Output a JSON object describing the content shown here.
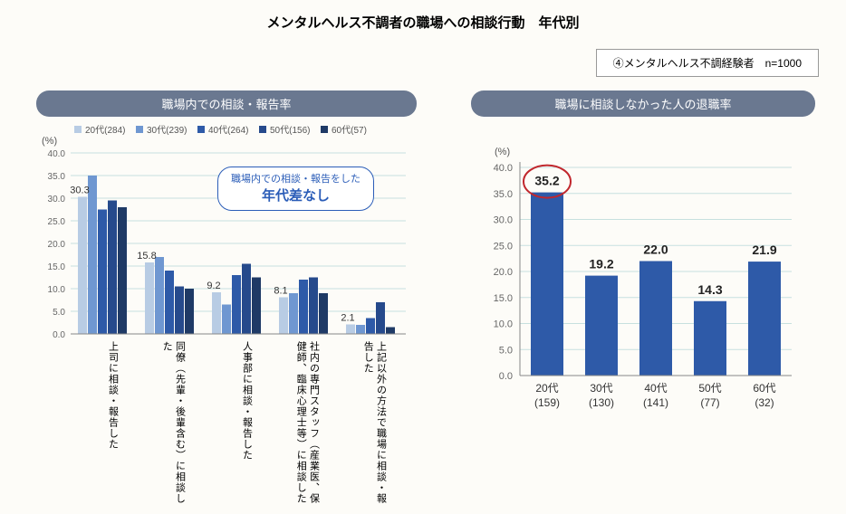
{
  "title": "メンタルヘルス不調者の職場への相談行動　年代別",
  "info_box": "④メンタルヘルス不調経験者　n=1000",
  "left_chart": {
    "header": "職場内での相談・報告率",
    "type": "grouped-bar",
    "y_axis_label": "(%)",
    "ylim": [
      0,
      40
    ],
    "ytick_step": 5,
    "legend": [
      {
        "label": "20代(284)",
        "color": "#b8cce4"
      },
      {
        "label": "30代(239)",
        "color": "#6f97d1"
      },
      {
        "label": "40代(264)",
        "color": "#2e5aa8"
      },
      {
        "label": "50代(156)",
        "color": "#264a8c"
      },
      {
        "label": "60代(57)",
        "color": "#1f3a66"
      }
    ],
    "categories": [
      {
        "label": "上司に相談・報告した",
        "values": [
          30.3,
          35.0,
          27.5,
          29.5,
          28.0
        ],
        "show_value": "30.3"
      },
      {
        "label": "同僚（先輩・後輩含む）に相談した",
        "values": [
          15.8,
          17.0,
          14.0,
          10.5,
          10.0
        ],
        "show_value": "15.8"
      },
      {
        "label": "人事部に相談・報告した",
        "values": [
          9.2,
          6.5,
          13.0,
          15.5,
          12.5
        ],
        "show_value": "9.2"
      },
      {
        "label": "社内の専門スタッフ（産業医、保健師、臨床心理士等）に相談した",
        "values": [
          8.1,
          9.0,
          12.0,
          12.5,
          9.0
        ],
        "show_value": "8.1"
      },
      {
        "label": "上記以外の方法で職場に相談・報告した",
        "values": [
          2.1,
          2.0,
          3.5,
          7.0,
          1.5
        ],
        "show_value": "2.1"
      }
    ],
    "callout": {
      "line1": "職場内での相談・報告をした",
      "line2": "年代差なし"
    },
    "tick_color": "#c7e0df",
    "label_fontsize": 11
  },
  "right_chart": {
    "header": "職場に相談しなかった人の退職率",
    "type": "bar",
    "y_axis_label": "(%)",
    "ylim": [
      0,
      40
    ],
    "ytick_step": 5,
    "bar_color": "#2e5aa8",
    "bars": [
      {
        "label_top": "20代",
        "label_bottom": "(159)",
        "value": 35.2,
        "circled": true
      },
      {
        "label_top": "30代",
        "label_bottom": "(130)",
        "value": 19.2,
        "circled": false
      },
      {
        "label_top": "40代",
        "label_bottom": "(141)",
        "value": 22.0,
        "circled": false
      },
      {
        "label_top": "50代",
        "label_bottom": "(77)",
        "value": 14.3,
        "circled": false
      },
      {
        "label_top": "60代",
        "label_bottom": "(32)",
        "value": 21.9,
        "circled": false
      }
    ],
    "circle_color": "#c1272d",
    "tick_color": "#c7e0df",
    "value_fontsize": 14,
    "label_fontsize": 12
  }
}
